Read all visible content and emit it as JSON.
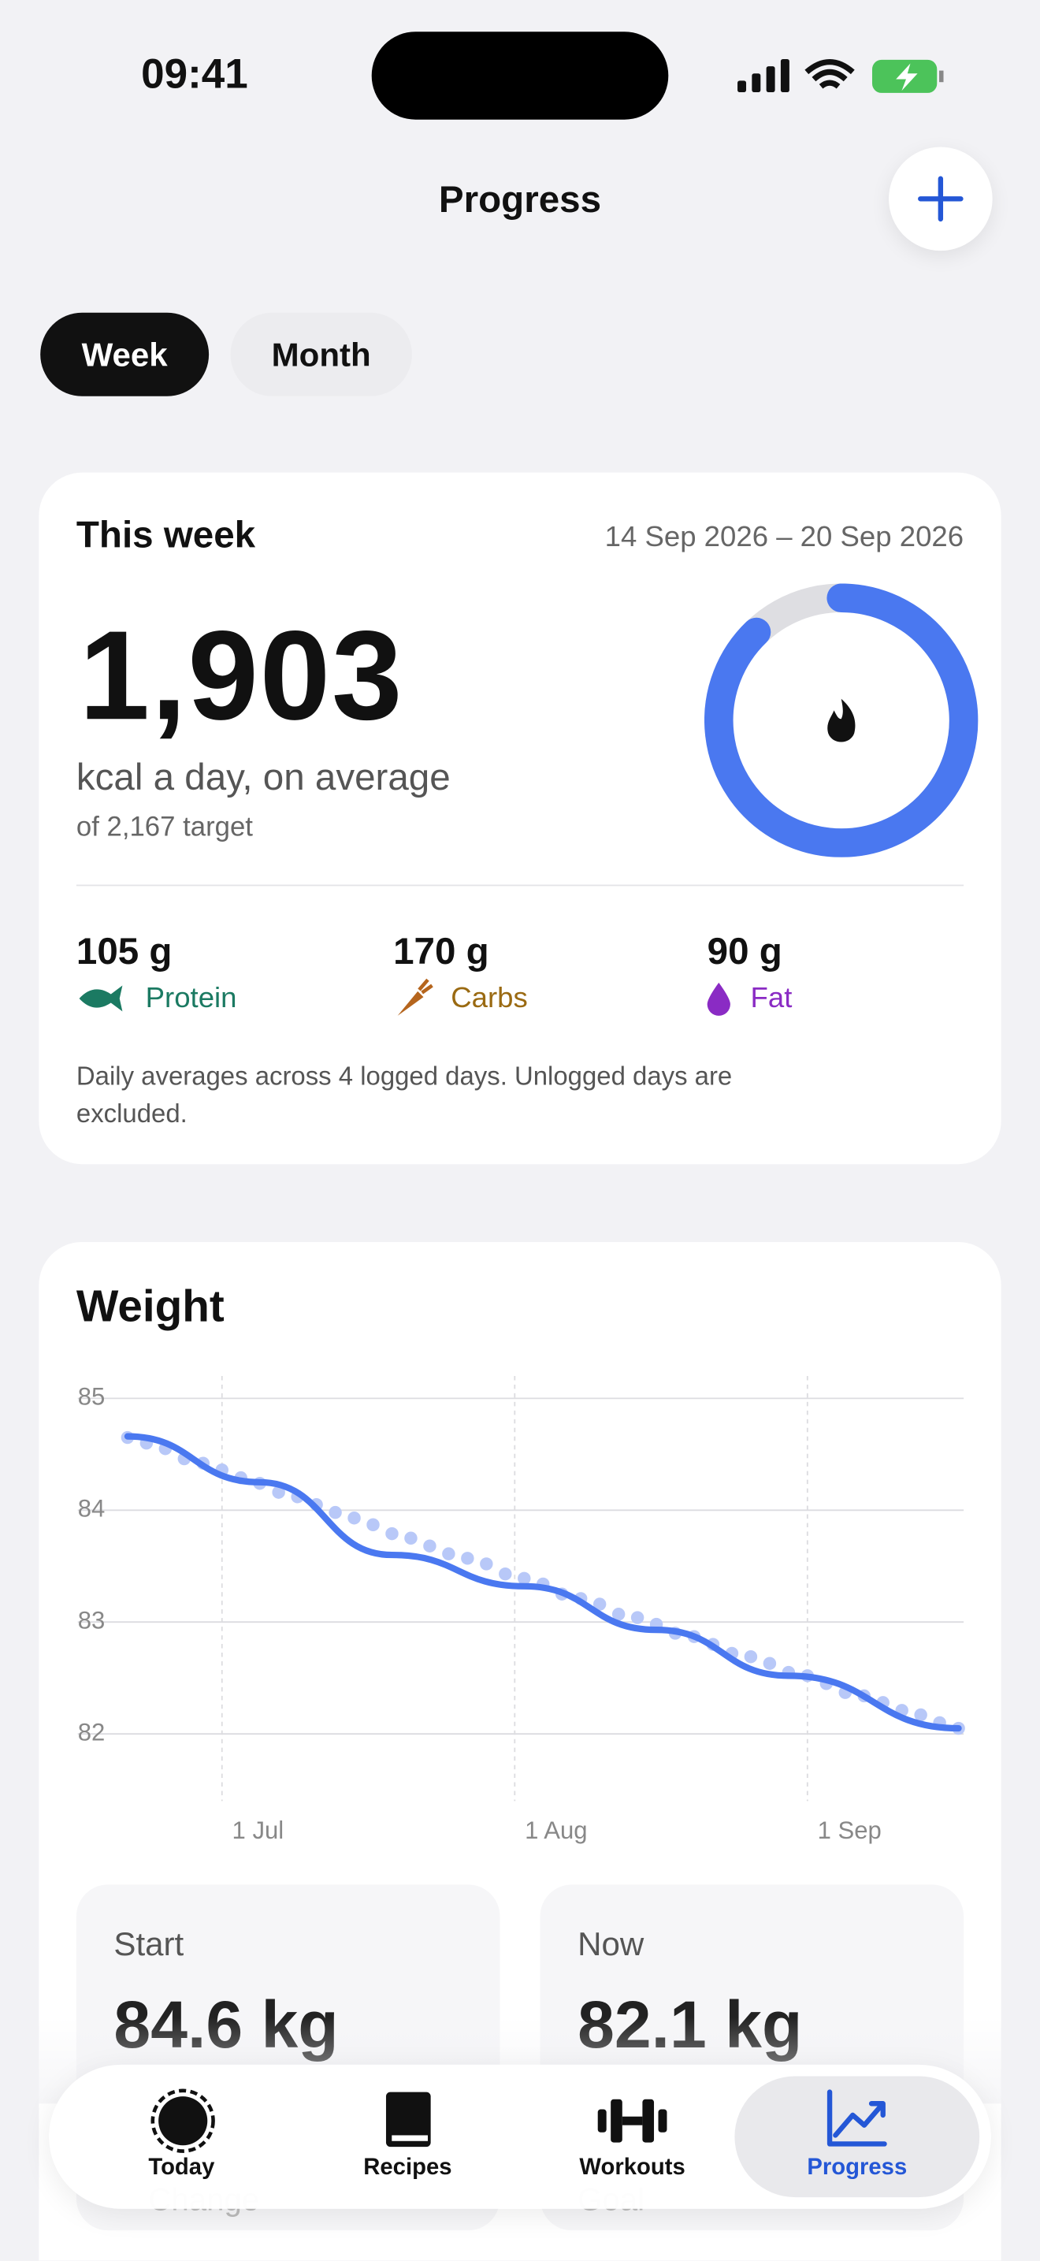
{
  "status": {
    "time": "09:41"
  },
  "header": {
    "title": "Progress"
  },
  "toggle": {
    "options": [
      "Week",
      "Month"
    ]
  },
  "summary": {
    "title": "This week",
    "range": "14 Sep 2026 – 20 Sep 2026",
    "calories": {
      "value": 1903,
      "label": "1,903"
    },
    "unit": "kcal a day, on average",
    "target": {
      "value": 2167,
      "label": "of 2,167 target"
    },
    "macros": [
      {
        "amount": "105 g",
        "name": "Protein"
      },
      {
        "amount": "170 g",
        "name": "Carbs"
      },
      {
        "amount": "90 g",
        "name": "Fat"
      }
    ],
    "note": "Daily averages across 4 logged days. Unlogged days are excluded."
  },
  "chart_data": {
    "type": "scatter",
    "title": "Weight",
    "xlim": [
      "20 Jun",
      "18 Sep"
    ],
    "xticks": [
      "1 Jul",
      "1 Aug",
      "1 Sep"
    ],
    "ylim": [
      81.4,
      85.2
    ],
    "yticks": [
      82,
      83,
      84,
      85
    ],
    "grid": true,
    "series": [
      {
        "color": "#b8c8f8",
        "x": [
          "21 Jun",
          "23 Jun",
          "25 Jun",
          "27 Jun",
          "29 Jun",
          "1 Jul",
          "3 Jul",
          "5 Jul",
          "7 Jul",
          "9 Jul",
          "11 Jul",
          "13 Jul",
          "15 Jul",
          "17 Jul",
          "19 Jul",
          "21 Jul",
          "23 Jul",
          "25 Jul",
          "27 Jul",
          "29 Jul",
          "31 Jul",
          "2 Aug",
          "4 Aug",
          "6 Aug",
          "8 Aug",
          "10 Aug",
          "12 Aug",
          "14 Aug",
          "16 Aug",
          "18 Aug",
          "20 Aug",
          "22 Aug",
          "24 Aug",
          "26 Aug",
          "28 Aug",
          "30 Aug",
          "1 Sep",
          "3 Sep",
          "5 Sep",
          "7 Sep",
          "9 Sep",
          "11 Sep",
          "13 Sep",
          "15 Sep",
          "17 Sep"
        ],
        "values": [
          84.65,
          84.6,
          84.55,
          84.46,
          84.42,
          84.36,
          84.29,
          84.24,
          84.16,
          84.12,
          84.05,
          83.98,
          83.93,
          83.87,
          83.79,
          83.75,
          83.68,
          83.61,
          83.57,
          83.52,
          83.43,
          83.39,
          83.34,
          83.25,
          83.21,
          83.16,
          83.07,
          83.04,
          82.98,
          82.9,
          82.87,
          82.8,
          82.72,
          82.69,
          82.63,
          82.55,
          82.52,
          82.45,
          82.37,
          82.34,
          82.28,
          82.21,
          82.17,
          82.1,
          82.05
        ]
      },
      {
        "color": "#4a78f0",
        "type": "line",
        "x": [
          "21 Jun",
          "5 Jul",
          "19 Jul",
          "2 Aug",
          "16 Aug",
          "30 Aug",
          "17 Sep"
        ],
        "values": [
          84.66,
          84.25,
          83.6,
          83.32,
          82.93,
          82.52,
          82.05
        ]
      }
    ]
  },
  "stats": [
    {
      "label": "Start",
      "value": "84.6 kg"
    },
    {
      "label": "Now",
      "value": "82.1 kg"
    },
    {
      "label": "Change"
    },
    {
      "label": "Goal"
    }
  ],
  "tabs": [
    "Today",
    "Recipes",
    "Workouts",
    "Progress"
  ]
}
